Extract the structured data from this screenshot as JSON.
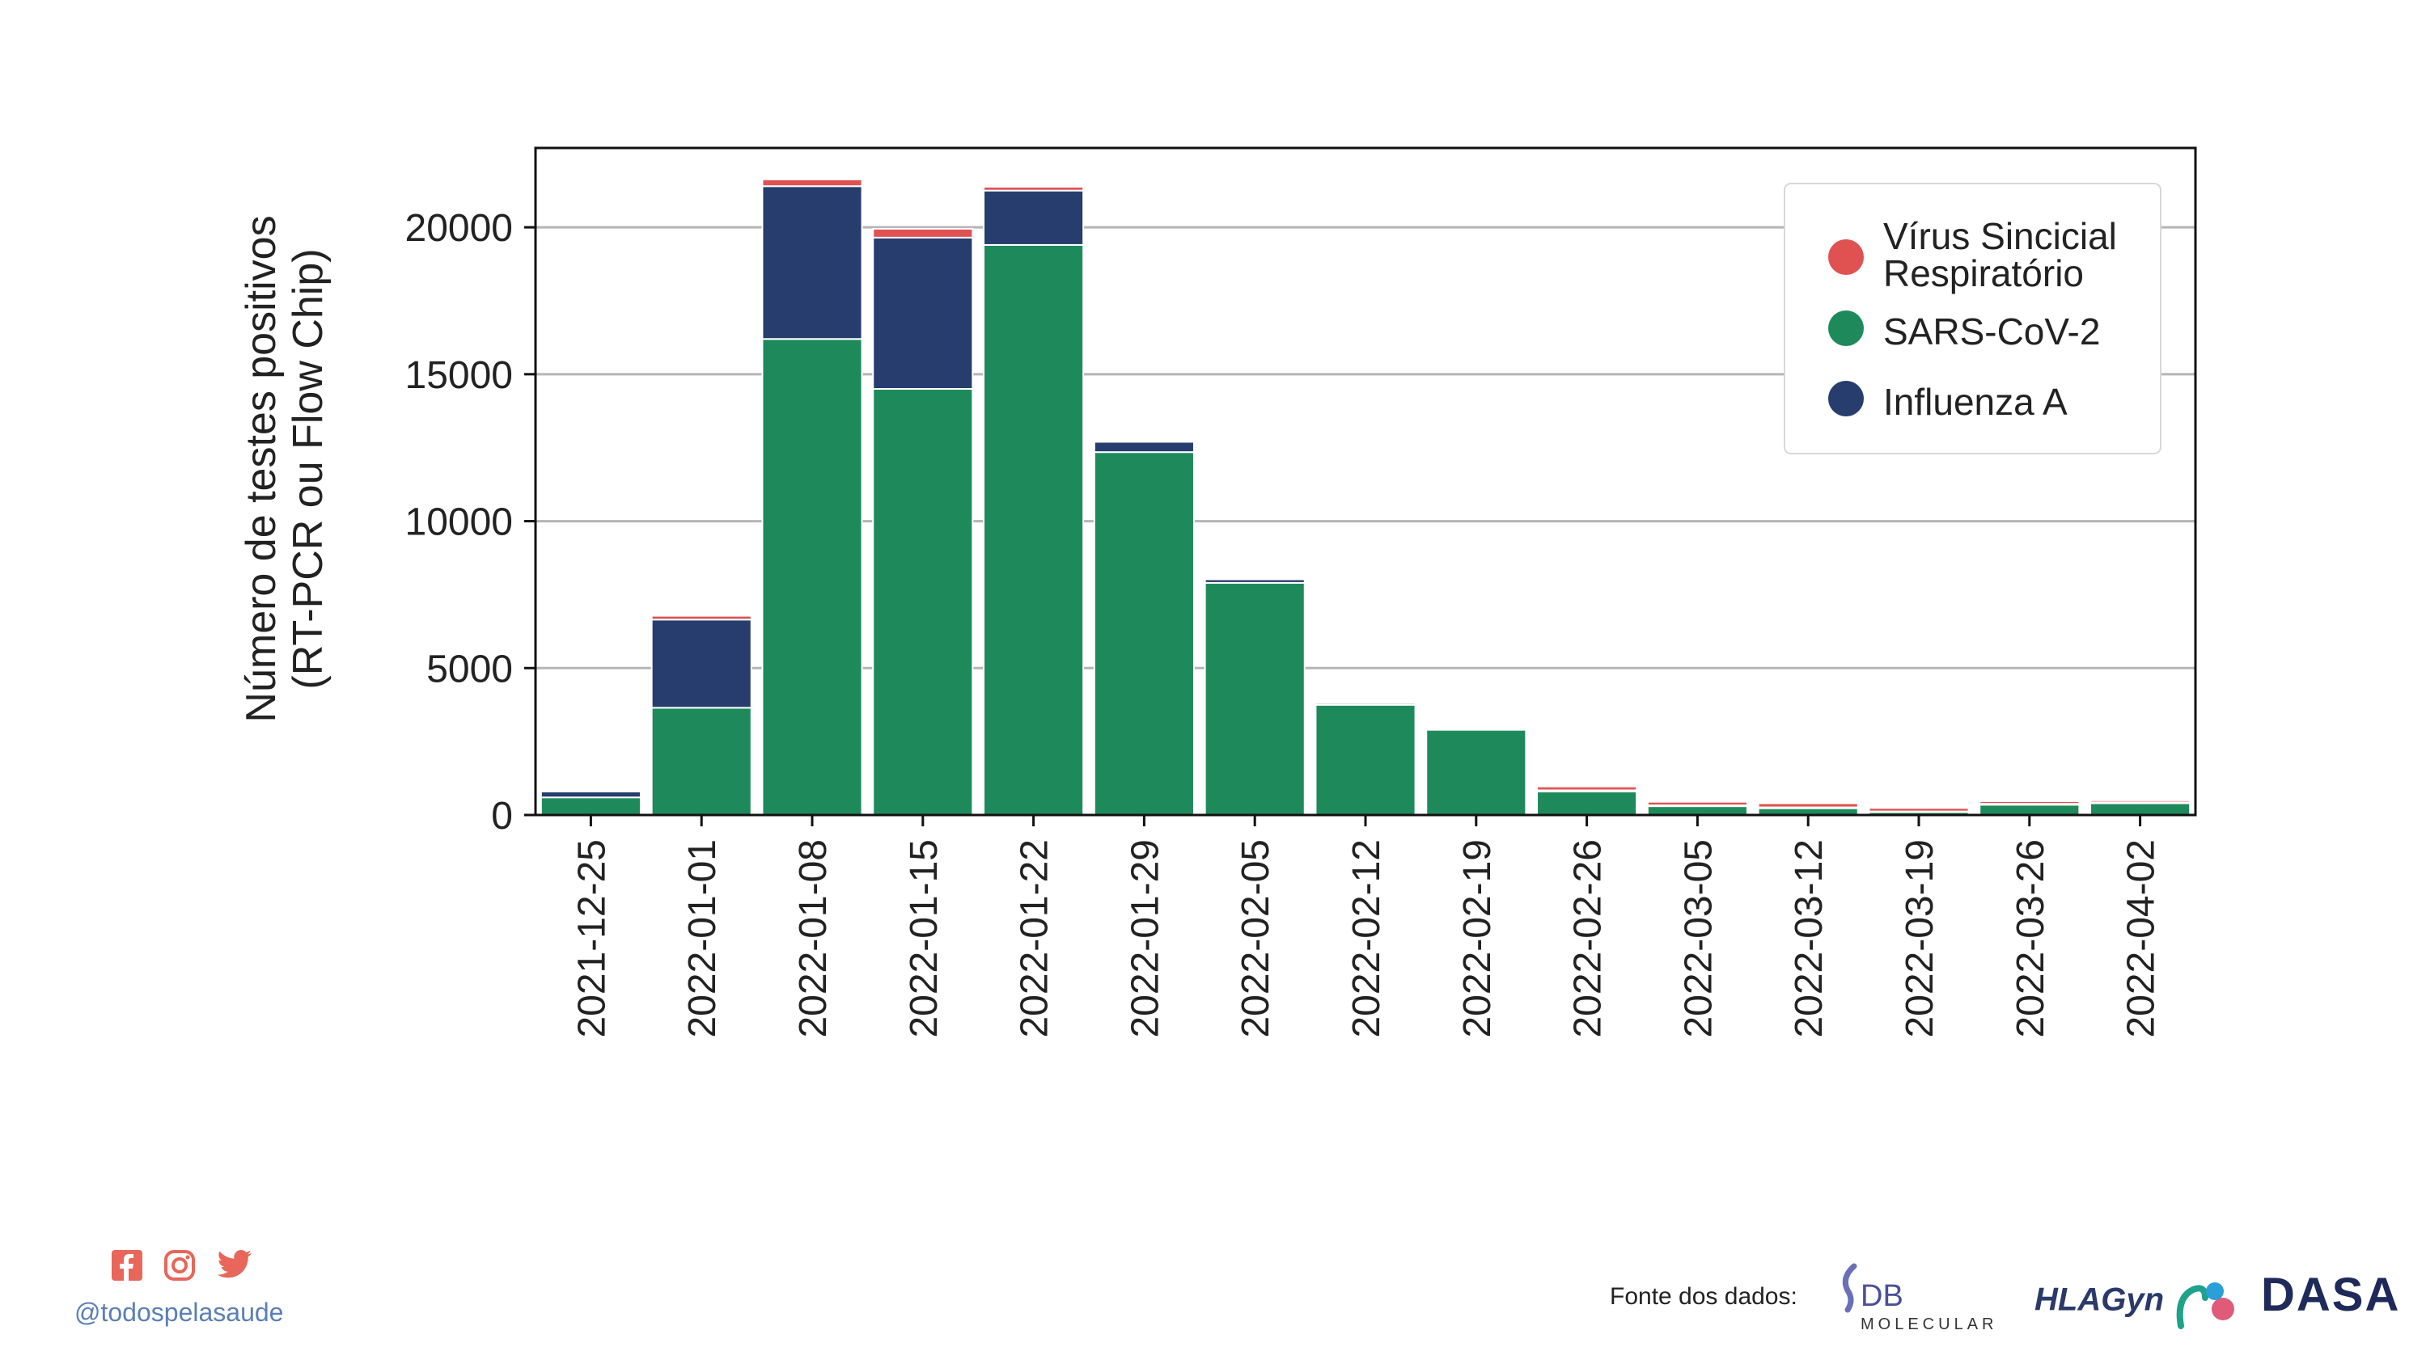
{
  "chart_data": {
    "type": "bar",
    "stacked": true,
    "ylabel_lines": [
      "Número de testes positivos",
      "(RT-PCR ou Flow Chip)"
    ],
    "ylim": [
      0,
      22700
    ],
    "yticks": [
      0,
      5000,
      10000,
      15000,
      20000
    ],
    "grid": "horizontal",
    "legend_position": "top-right",
    "categories": [
      "2021-12-25",
      "2022-01-01",
      "2022-01-08",
      "2022-01-15",
      "2022-01-22",
      "2022-01-29",
      "2022-02-05",
      "2022-02-12",
      "2022-02-19",
      "2022-02-26",
      "2022-03-05",
      "2022-03-12",
      "2022-03-19",
      "2022-03-26",
      "2022-04-02"
    ],
    "series": [
      {
        "name": "SARS-CoV-2",
        "color": "#1e8a5c",
        "values": [
          600,
          3650,
          16200,
          14500,
          19400,
          12350,
          7900,
          3750,
          2900,
          800,
          300,
          230,
          100,
          350,
          400
        ]
      },
      {
        "name": "Influenza A",
        "color": "#263d6e",
        "values": [
          200,
          3000,
          5200,
          5150,
          1850,
          350,
          120,
          60,
          50,
          40,
          30,
          30,
          20,
          30,
          30
        ]
      },
      {
        "name": "Vírus Sincicial Respiratório",
        "color": "#e05252",
        "values": [
          30,
          130,
          230,
          300,
          130,
          20,
          20,
          20,
          30,
          130,
          120,
          140,
          120,
          90,
          70
        ]
      }
    ],
    "legend_items": [
      {
        "lines": [
          "Vírus Sincicial",
          "Respiratório"
        ],
        "color": "#e05252"
      },
      {
        "lines": [
          "SARS-CoV-2"
        ],
        "color": "#1e8a5c"
      },
      {
        "lines": [
          "Influenza A"
        ],
        "color": "#263d6e"
      }
    ]
  },
  "footer": {
    "handle": "@todospelasaude",
    "source_label": "Fonte dos dados:",
    "logo_db_main": "DB",
    "logo_db_sub": "MOLECULAR",
    "logo_hla": "HLAGyn",
    "logo_dasa": "DASA",
    "social_color": "#e8665a"
  }
}
